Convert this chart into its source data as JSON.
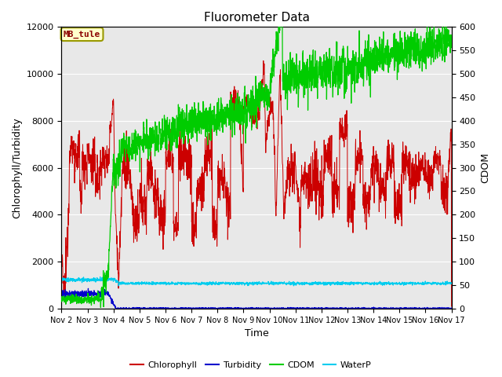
{
  "title": "Fluorometer Data",
  "xlabel": "Time",
  "ylabel_left": "Chlorophyll/Turbidity",
  "ylabel_right": "CDOM",
  "annotation": "MB_tule",
  "ylim_left": [
    0,
    12000
  ],
  "ylim_right": [
    0,
    600
  ],
  "colors": {
    "chlorophyll": "#cc0000",
    "turbidity": "#0000cc",
    "cdom": "#00cc00",
    "waterp": "#00ccee",
    "background_light": "#e8e8e8",
    "background_dark": "#d0d0d0",
    "annotation_bg": "#ffffcc",
    "annotation_border": "#999900"
  },
  "xtick_labels": [
    "Nov 2",
    "Nov 3",
    "Nov 4",
    "Nov 5",
    "Nov 6",
    "Nov 7",
    "Nov 8",
    "Nov 9",
    "Nov 10",
    "Nov 11",
    "Nov 12",
    "Nov 13",
    "Nov 14",
    "Nov 15",
    "Nov 16",
    "Nov 17"
  ],
  "ytick_left": [
    0,
    2000,
    4000,
    6000,
    8000,
    10000,
    12000
  ],
  "ytick_right": [
    0,
    50,
    100,
    150,
    200,
    250,
    300,
    350,
    400,
    450,
    500,
    550,
    600
  ],
  "legend_entries": [
    "Chlorophyll",
    "Turbidity",
    "CDOM",
    "WaterP"
  ],
  "title_fontsize": 11,
  "label_fontsize": 9,
  "tick_fontsize": 8
}
